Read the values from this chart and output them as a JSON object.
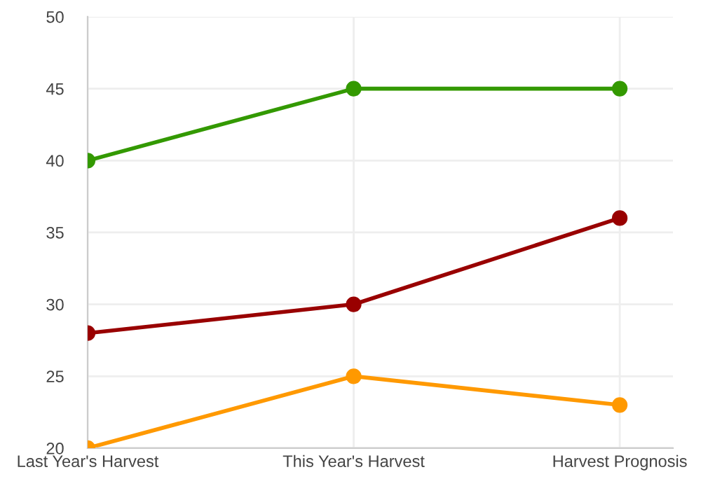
{
  "chart_data": {
    "type": "line",
    "categories": [
      "Last Year's Harvest",
      "This Year's Harvest",
      "Harvest Prognosis"
    ],
    "series": [
      {
        "color": "#339900",
        "values": [
          40,
          45,
          45
        ]
      },
      {
        "color": "#990000",
        "values": [
          28,
          30,
          36
        ]
      },
      {
        "color": "#ff9900",
        "values": [
          20,
          25,
          23
        ]
      }
    ],
    "ylim": [
      20,
      50
    ],
    "yticks": [
      20,
      25,
      30,
      35,
      40,
      45,
      50
    ],
    "grid": true,
    "marker": "circle",
    "line_style": "solid",
    "legend": false
  }
}
